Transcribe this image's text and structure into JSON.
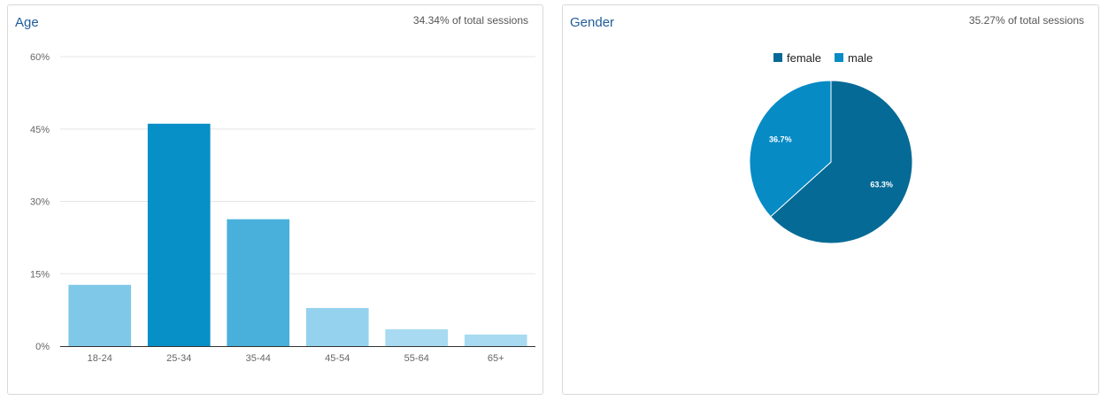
{
  "chart_data": [
    {
      "type": "bar",
      "title": "Age",
      "note": "34.34% of total sessions",
      "categories": [
        "18-24",
        "25-34",
        "35-44",
        "45-54",
        "55-64",
        "65+"
      ],
      "values": [
        12.7,
        46.1,
        26.3,
        7.9,
        3.5,
        2.4
      ],
      "colors": [
        "#7fc8e8",
        "#078fc8",
        "#49b0dc",
        "#94d2ee",
        "#a8dbf1",
        "#a8dbf1"
      ],
      "ylim": [
        0,
        60
      ],
      "yticks": [
        0,
        15,
        30,
        45,
        60
      ],
      "ytick_labels": [
        "0%",
        "15%",
        "30%",
        "45%",
        "60%"
      ],
      "grid": true
    },
    {
      "type": "pie",
      "title": "Gender",
      "note": "35.27% of total sessions",
      "legend_position": "top",
      "slices": [
        {
          "label": "female",
          "value": 63.3,
          "display": "63.3%",
          "color": "#056a96"
        },
        {
          "label": "male",
          "value": 36.7,
          "display": "36.7%",
          "color": "#078bc5"
        }
      ]
    }
  ]
}
